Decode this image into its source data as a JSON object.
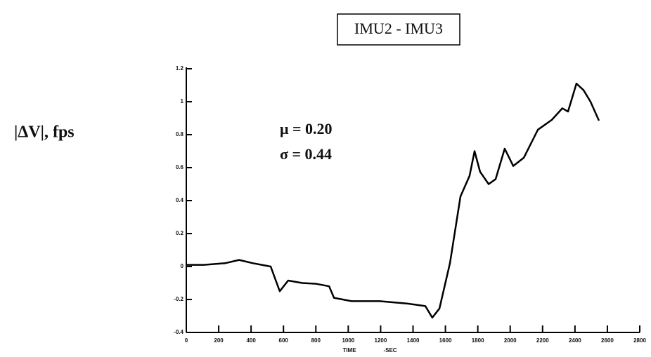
{
  "chart_data": {
    "type": "line",
    "title": "IMU2 - IMU3",
    "y_label": "|ΔV|, fps",
    "x_label": "TIME",
    "x_label_unit": "-SEC",
    "annotations": [
      "μ = 0.20",
      "σ = 0.44"
    ],
    "xlim": [
      0,
      2800
    ],
    "xticks": [
      0,
      200,
      400,
      600,
      800,
      1000,
      1200,
      1400,
      1600,
      1800,
      2000,
      2200,
      2400,
      2600,
      2800
    ],
    "ylim": [
      -0.4,
      1.2
    ],
    "yticks": [
      -0.4,
      -0.2,
      0,
      0.2,
      0.4,
      0.6,
      0.8,
      1.0,
      1.2
    ],
    "series": [
      {
        "name": "IMU2 - IMU3",
        "color": "#000000",
        "x": [
          0,
          109,
          239,
          326,
          412,
          521,
          577,
          629,
          716,
          803,
          882,
          912,
          1020,
          1194,
          1367,
          1476,
          1519,
          1563,
          1628,
          1693,
          1749,
          1780,
          1814,
          1867,
          1910,
          1966,
          2019,
          2084,
          2171,
          2257,
          2322,
          2357,
          2409,
          2453,
          2496,
          2548
        ],
        "values": [
          0.01,
          0.01,
          0.02,
          0.04,
          0.02,
          0,
          -0.15,
          -0.085,
          -0.1,
          -0.105,
          -0.12,
          -0.19,
          -0.21,
          -0.21,
          -0.225,
          -0.24,
          -0.31,
          -0.255,
          0.02,
          0.425,
          0.55,
          0.7,
          0.575,
          0.5,
          0.53,
          0.715,
          0.61,
          0.66,
          0.83,
          0.89,
          0.96,
          0.94,
          1.11,
          1.07,
          1.0,
          0.885
        ]
      }
    ]
  }
}
